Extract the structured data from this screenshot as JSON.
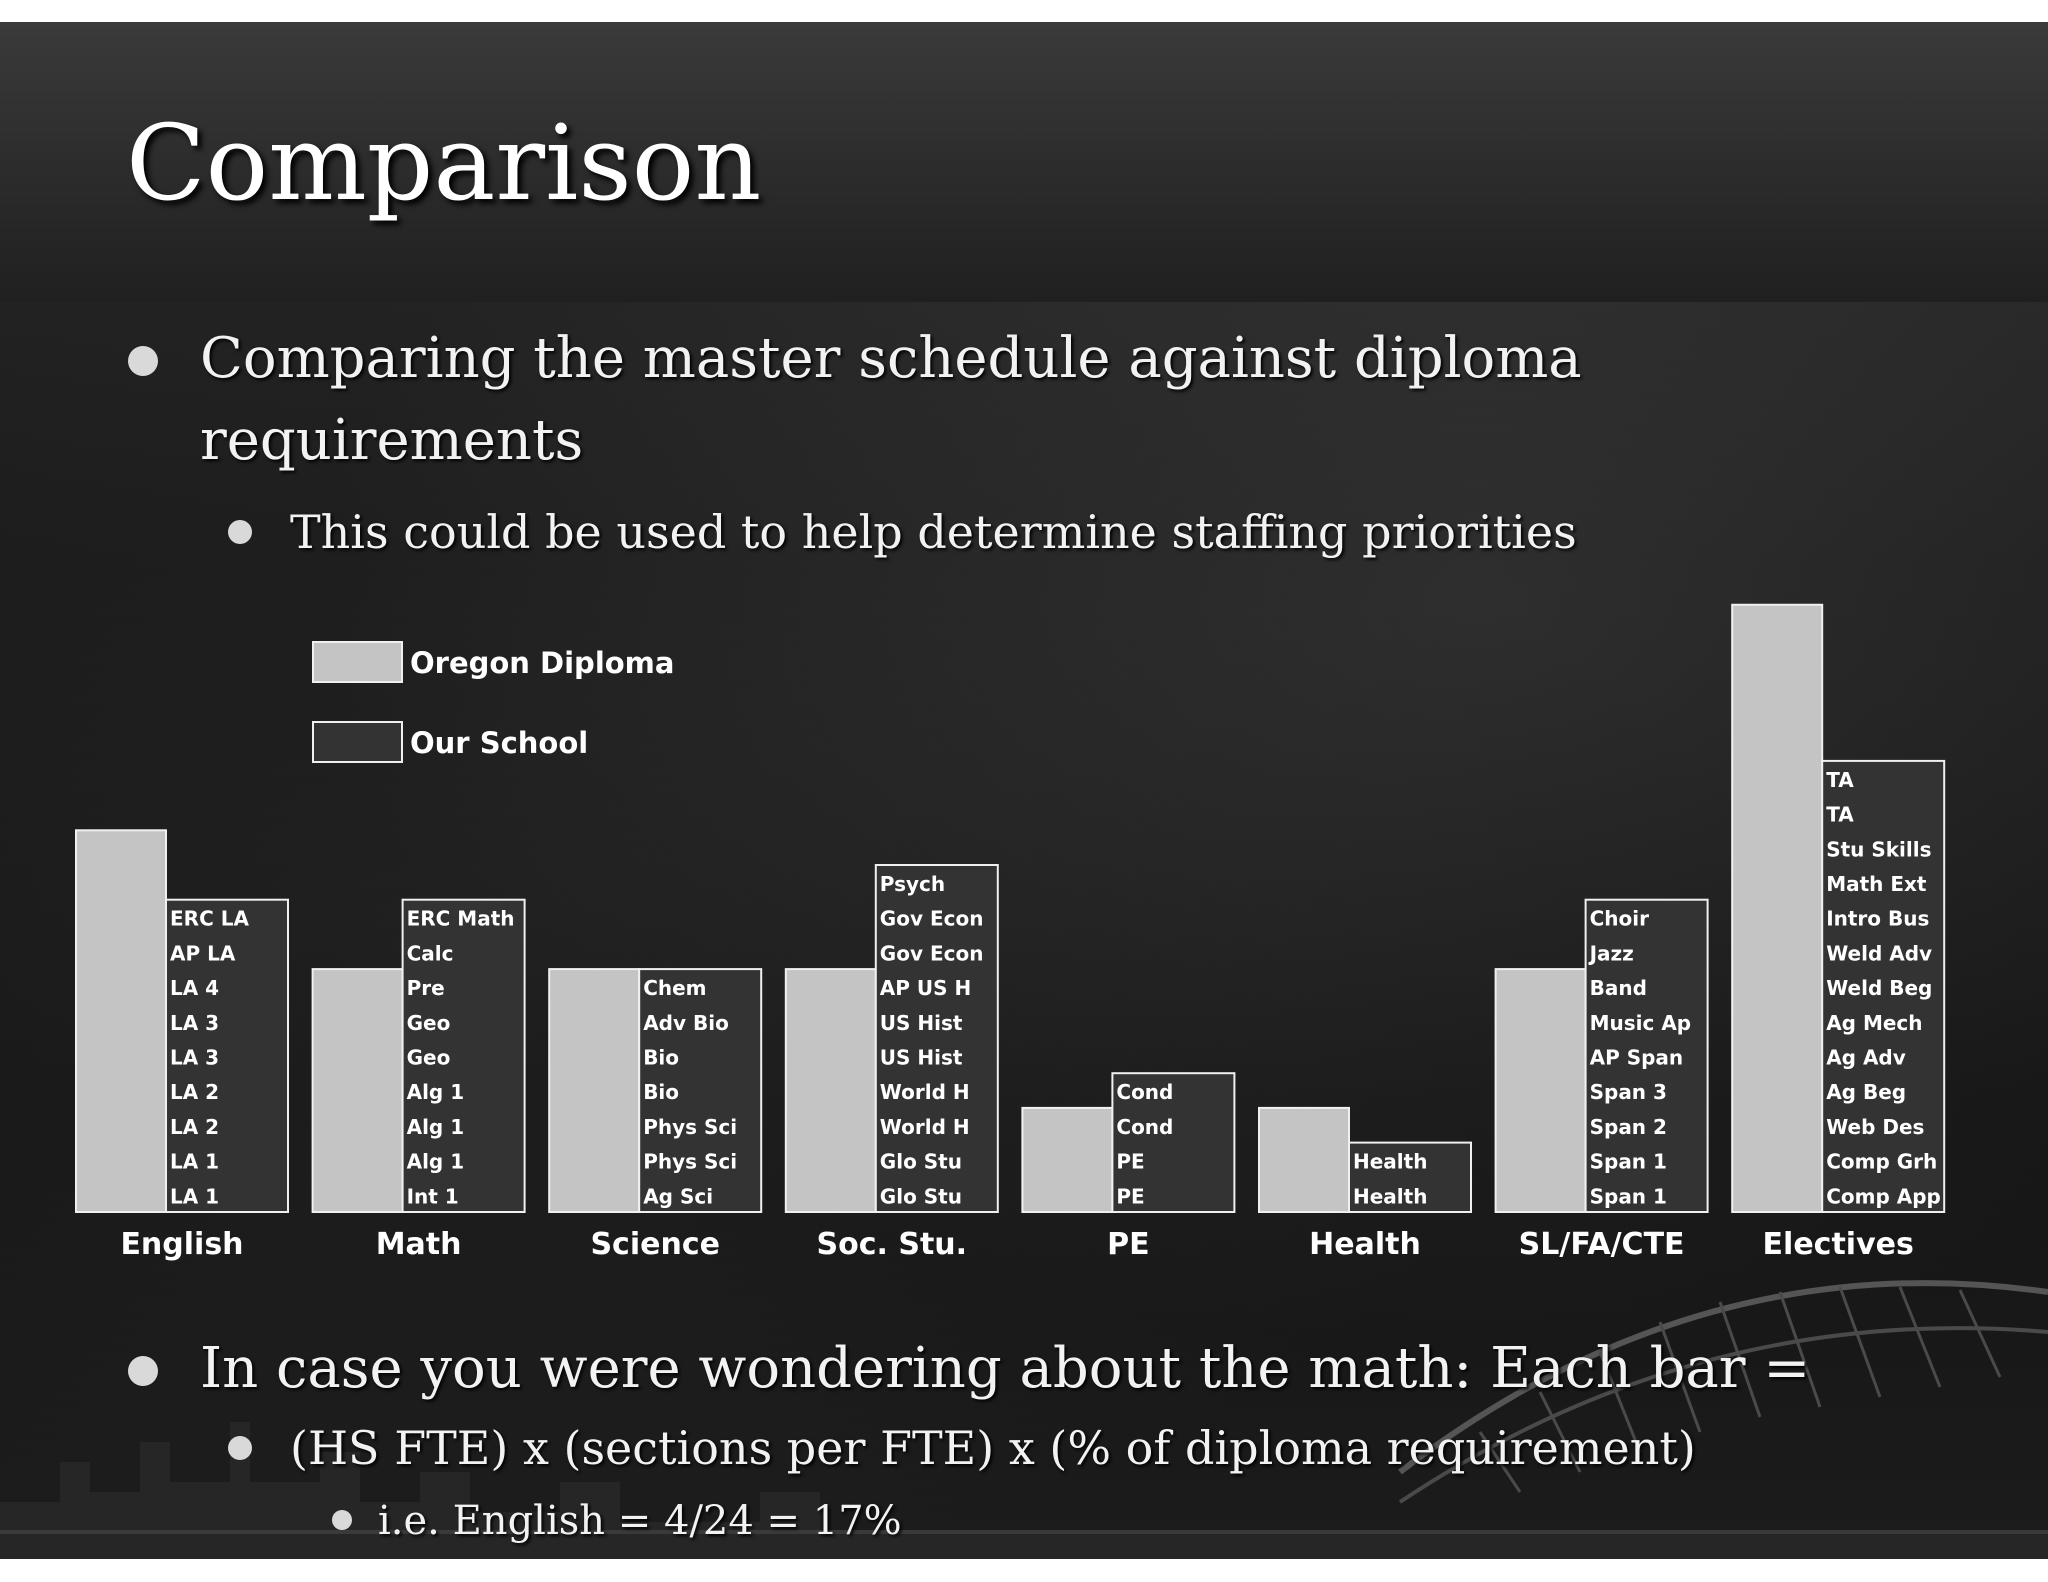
{
  "slide": {
    "title": "Comparison",
    "bullets": {
      "b1": "Comparing the master schedule against diploma requirements",
      "b1_sub": "This could be used to help determine staffing priorities",
      "b2": "In case you were wondering about the math: Each bar =",
      "b2_sub": "(HS FTE) x (sections per FTE) x (% of diploma requirement)",
      "b2_subsub": "i.e. English = 4/24 = 17%"
    }
  },
  "colors": {
    "oregon_fill": "#c4c4c4",
    "school_fill": "#333333",
    "bar_stroke": "#f0f0f0",
    "text": "#ffffff"
  },
  "chart_data": {
    "type": "bar",
    "legend": {
      "placement": "top-left",
      "entries": [
        "Oregon Diploma",
        "Our School"
      ]
    },
    "series": [
      {
        "name": "Oregon Diploma",
        "values": [
          11,
          7,
          7,
          7,
          3,
          3,
          7,
          17.5
        ]
      },
      {
        "name": "Our School",
        "values": [
          9,
          9,
          7,
          10,
          4,
          2,
          9,
          13
        ]
      }
    ],
    "categories": [
      "English",
      "Math",
      "Science",
      "Soc. Stu.",
      "PE",
      "Health",
      "SL/FA/CTE",
      "Electives"
    ],
    "ylim": [
      0,
      18
    ],
    "grid": false,
    "section_labels": [
      [
        "ERC LA",
        "AP LA",
        "LA 4",
        "LA 3",
        "LA 3",
        "LA 2",
        "LA 2",
        "LA 1",
        "LA 1"
      ],
      [
        "ERC Math",
        "Calc",
        "Pre",
        "Geo",
        "Geo",
        "Alg 1",
        "Alg 1",
        "Alg 1",
        "Int 1"
      ],
      [
        "Chem",
        "Adv Bio",
        "Bio",
        "Bio",
        "Phys Sci",
        "Phys Sci",
        "Ag Sci"
      ],
      [
        "Psych",
        "Gov Econ",
        "Gov Econ",
        "AP US H",
        "US Hist",
        "US Hist",
        "World H",
        "World H",
        "Glo Stu",
        "Glo Stu"
      ],
      [
        "Cond",
        "Cond",
        "PE",
        "PE"
      ],
      [
        "Health",
        "Health"
      ],
      [
        "Choir",
        "Jazz",
        "Band",
        "Music Ap",
        "AP Span",
        "Span 3",
        "Span 2",
        "Span 1",
        "Span 1"
      ],
      [
        "TA",
        "TA",
        "Stu Skills",
        "Math Ext",
        "Intro Bus",
        "Weld Adv",
        "Weld Beg",
        "Ag Mech",
        "Ag Adv",
        "Ag Beg",
        "Web Des",
        "Comp Grh",
        "Comp App"
      ]
    ]
  }
}
